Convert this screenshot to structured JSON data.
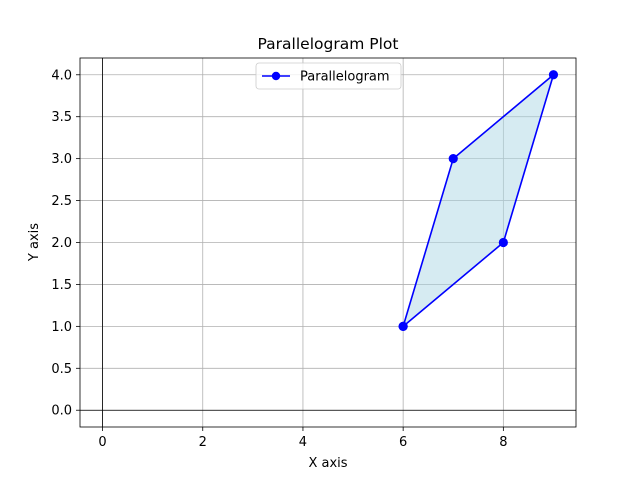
{
  "chart_data": {
    "type": "line",
    "title": "Parallelogram Plot",
    "xlabel": "X axis",
    "ylabel": "Y axis",
    "xlim": [
      -0.45,
      9.45
    ],
    "ylim": [
      -0.2,
      4.2
    ],
    "x_ticks": [
      0,
      2,
      4,
      6,
      8
    ],
    "x_tick_labels": [
      "0",
      "2",
      "4",
      "6",
      "8"
    ],
    "y_ticks": [
      0.0,
      0.5,
      1.0,
      1.5,
      2.0,
      2.5,
      3.0,
      3.5,
      4.0
    ],
    "y_tick_labels": [
      "0.0",
      "0.5",
      "1.0",
      "1.5",
      "2.0",
      "2.5",
      "3.0",
      "3.5",
      "4.0"
    ],
    "grid": true,
    "zero_lines": true,
    "legend_position": "top-center",
    "series": [
      {
        "name": "Parallelogram",
        "x": [
          6,
          8,
          9,
          7,
          6
        ],
        "y": [
          1,
          2,
          4,
          3,
          1
        ],
        "color": "#0000ff",
        "marker": "circle",
        "fill_color": "#add8e6",
        "fill_opacity": 0.5
      }
    ]
  }
}
